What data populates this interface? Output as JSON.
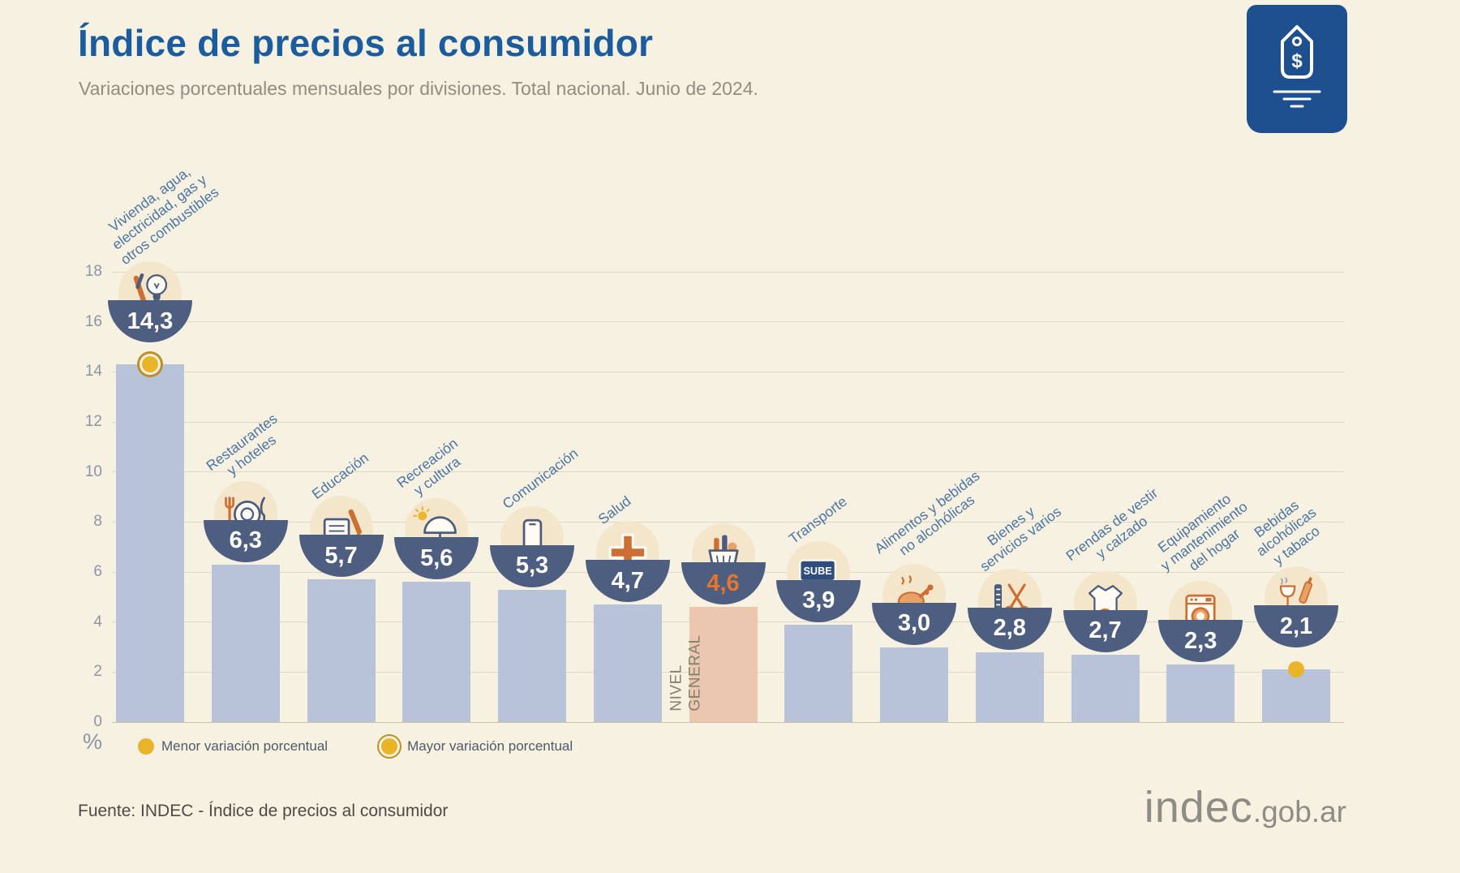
{
  "header": {
    "title": "Índice de precios al consumidor",
    "subtitle": "Variaciones porcentuales mensuales por divisiones. Total nacional. Junio de 2024."
  },
  "logo": {
    "symbol": "$"
  },
  "axis": {
    "unit": "%",
    "ticks": [
      0,
      2,
      4,
      6,
      8,
      10,
      12,
      14,
      16,
      18
    ]
  },
  "legend": {
    "min_label": "Menor variación porcentual",
    "max_label": "Mayor variación porcentual"
  },
  "footer": {
    "source": "Fuente: INDEC - Índice de precios al consumidor",
    "logo_text": "indec",
    "logo_suffix": ".gob.ar"
  },
  "colors": {
    "background": "#f7f1e2",
    "title_blue": "#1a5c9d",
    "bar": "#b8c3d7",
    "highlight_bar": "#ebc7af",
    "value_bowl": "#4e5e80",
    "highlight_value": "#e5762e",
    "label_blue": "#4b74a2",
    "marker_yellow": "#e9b427",
    "logo_blue": "#1e508f"
  },
  "chart_data": {
    "type": "bar",
    "title": "Índice de precios al consumidor",
    "subtitle": "Variaciones porcentuales mensuales por divisiones. Total nacional. Junio de 2024.",
    "ylabel": "%",
    "ylim": [
      0,
      18
    ],
    "ytick_step": 2,
    "grid": true,
    "legend_position": "bottom-left",
    "categories": [
      "Vivienda, agua, electricidad, gas y otros combustibles",
      "Restaurantes y hoteles",
      "Educación",
      "Recreación y cultura",
      "Comunicación",
      "Salud",
      "Nivel general",
      "Transporte",
      "Alimentos y bebidas no alcohólicas",
      "Bienes y servicios varios",
      "Prendas de vestir y calzado",
      "Equipamiento y mantenimiento del hogar",
      "Bebidas alcohólicas y tabaco"
    ],
    "values": [
      14.3,
      6.3,
      5.7,
      5.6,
      5.3,
      4.7,
      4.6,
      3.9,
      3.0,
      2.8,
      2.7,
      2.3,
      2.1
    ],
    "highlight_category": "Nivel general",
    "marker_max_category": "Vivienda, agua, electricidad, gas y otros combustibles",
    "marker_min_category": "Bebidas alcohólicas y tabaco",
    "bars": [
      {
        "id": "vivienda",
        "label": "Vivienda, agua,\nelectricidad, gas y\notros combustibles",
        "value": 14.3,
        "value_label": "14,3",
        "icon": "bulb-tools-icon",
        "marker": "max"
      },
      {
        "id": "restaurantes",
        "label": "Restaurantes\ny hoteles",
        "value": 6.3,
        "value_label": "6,3",
        "icon": "restaurant-icon"
      },
      {
        "id": "educacion",
        "label": "Educación",
        "value": 5.7,
        "value_label": "5,7",
        "icon": "education-icon"
      },
      {
        "id": "recreacion",
        "label": "Recreación\ny cultura",
        "value": 5.6,
        "value_label": "5,6",
        "icon": "recreation-icon"
      },
      {
        "id": "comunicacion",
        "label": "Comunicación",
        "value": 5.3,
        "value_label": "5,3",
        "icon": "phone-icon"
      },
      {
        "id": "salud",
        "label": "Salud",
        "value": 4.7,
        "value_label": "4,7",
        "icon": "health-cross-icon"
      },
      {
        "id": "nivel-general",
        "label": "",
        "inbar_label": "NIVEL\nGENERAL",
        "value": 4.6,
        "value_label": "4,6",
        "icon": "shopping-basket-icon",
        "highlight": true
      },
      {
        "id": "transporte",
        "label": "Transporte",
        "value": 3.9,
        "value_label": "3,9",
        "icon": "sube-card-icon",
        "icon_text": "SUBE"
      },
      {
        "id": "alimentos",
        "label": "Alimentos y bebidas\nno alcohólicas",
        "value": 3.0,
        "value_label": "3,0",
        "icon": "chicken-icon"
      },
      {
        "id": "bienes-servicios",
        "label": "Bienes y\nservicios varios",
        "value": 2.8,
        "value_label": "2,8",
        "icon": "comb-scissors-icon"
      },
      {
        "id": "prendas",
        "label": "Prendas de vestir\ny calzado",
        "value": 2.7,
        "value_label": "2,7",
        "icon": "clothing-icon"
      },
      {
        "id": "equipamiento",
        "label": "Equipamiento\ny mantenimiento\ndel hogar",
        "value": 2.3,
        "value_label": "2,3",
        "icon": "washing-machine-icon"
      },
      {
        "id": "bebidas-tabaco",
        "label": "Bebidas\nalcohólicas\ny tabaco",
        "value": 2.1,
        "value_label": "2,1",
        "icon": "drinks-tobacco-icon",
        "marker": "min"
      }
    ]
  }
}
